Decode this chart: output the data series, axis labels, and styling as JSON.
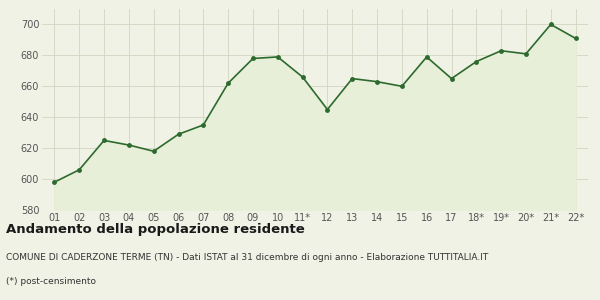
{
  "x_labels": [
    "01",
    "02",
    "03",
    "04",
    "05",
    "06",
    "07",
    "08",
    "09",
    "10",
    "11*",
    "12",
    "13",
    "14",
    "15",
    "16",
    "17",
    "18*",
    "19*",
    "20*",
    "21*",
    "22*"
  ],
  "y_values": [
    598,
    606,
    625,
    622,
    618,
    629,
    635,
    662,
    678,
    679,
    666,
    645,
    665,
    663,
    660,
    679,
    665,
    676,
    683,
    681,
    700,
    691
  ],
  "line_color": "#2d6a2d",
  "fill_color": "#e8efd8",
  "marker_color": "#2d6a2d",
  "plot_bg_color": "#f0f2e6",
  "fig_bg_color": "#f0f2e6",
  "grid_color": "#d0d5c0",
  "ylim": [
    580,
    710
  ],
  "yticks": [
    580,
    600,
    620,
    640,
    660,
    680,
    700
  ],
  "title": "Andamento della popolazione residente",
  "subtitle1": "COMUNE DI CADERZONE TERME (TN) - Dati ISTAT al 31 dicembre di ogni anno - Elaborazione TUTTITALIA.IT",
  "subtitle2": "(*) post-censimento",
  "title_fontsize": 9.5,
  "subtitle_fontsize": 6.5,
  "tick_fontsize": 7
}
